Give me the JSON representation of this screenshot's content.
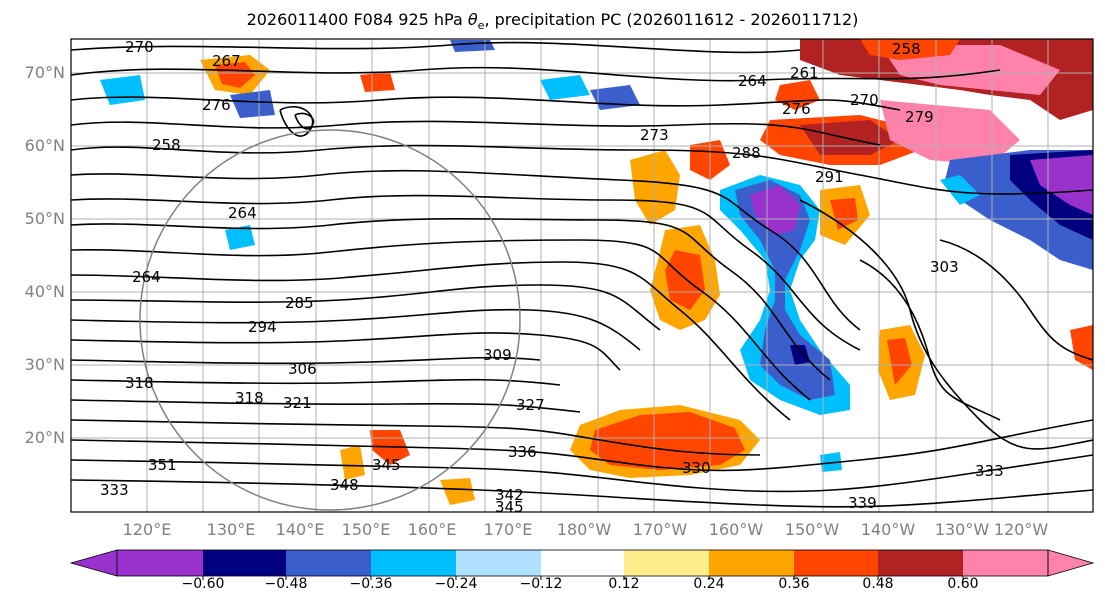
{
  "title_main": "2026011400 F084 925 hPa ",
  "title_symbol": "θ",
  "title_sub": "e",
  "title_rest": ", precipitation PC (2026011612 - 2026011712)",
  "lat_labels": [
    "70°N",
    "60°N",
    "50°N",
    "40°N",
    "30°N",
    "20°N"
  ],
  "lon_labels": [
    "120°E",
    "130°E",
    "140°E",
    "150°E",
    "160°E",
    "170°E",
    "180°W",
    "170°W",
    "160°W",
    "150°W",
    "140°W",
    "130°W",
    "120°W"
  ],
  "colorbar": {
    "ticks": [
      "−0.60",
      "−0.48",
      "−0.36",
      "−0.24",
      "−0.12",
      "0.12",
      "0.24",
      "0.36",
      "0.48",
      "0.60"
    ],
    "colors": [
      "#9932cc",
      "#000080",
      "#3a5fcd",
      "#00bfff",
      "#b0e2ff",
      "#ffffff",
      "#ffec8b",
      "#ffa500",
      "#ff4500",
      "#b22222",
      "#ff82ab"
    ]
  },
  "contour_labels": [
    "270",
    "267",
    "258",
    "264",
    "276",
    "264",
    "261",
    "270",
    "279",
    "258",
    "276",
    "273",
    "288",
    "291",
    "303",
    "264",
    "285",
    "294",
    "306",
    "309",
    "318",
    "321",
    "327",
    "318",
    "336",
    "330",
    "333",
    "339",
    "345",
    "348",
    "342",
    "345",
    "351",
    "333"
  ],
  "colors": {
    "contour": "#000000",
    "grid": "#b0b0b0",
    "great_circle": "#808080"
  }
}
